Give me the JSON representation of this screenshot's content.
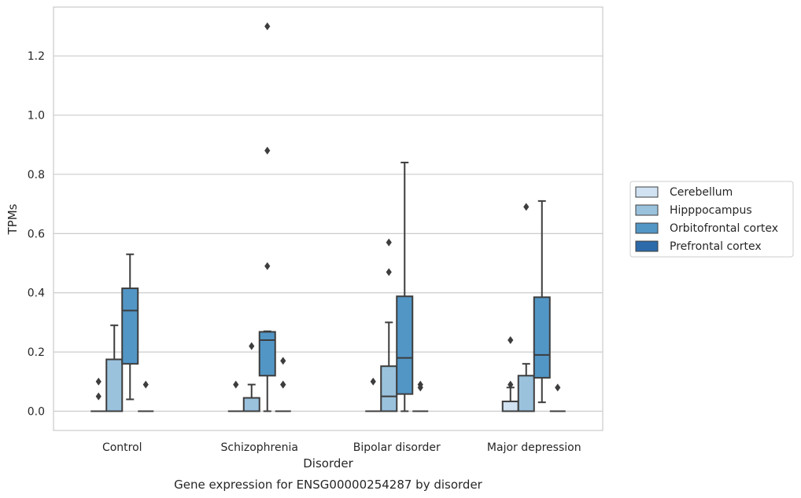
{
  "chart_data": {
    "type": "box",
    "xlabel": "Disorder",
    "ylabel": "TPMs",
    "caption": "Gene expression for ENSG00000254287 by disorder",
    "categories": [
      "Control",
      "Schizophrenia",
      "Bipolar disorder",
      "Major depression"
    ],
    "ylim": [
      -0.065,
      1.365
    ],
    "yticks": [
      0.0,
      0.2,
      0.4,
      0.6,
      0.8,
      1.0,
      1.2
    ],
    "ytick_labels": [
      "0.0",
      "0.2",
      "0.4",
      "0.6",
      "0.8",
      "1.0",
      "1.2"
    ],
    "grid": true,
    "legend_position": "right",
    "series": [
      {
        "name": "Cerebellum",
        "color": "#d1e2f2",
        "boxes": [
          {
            "whislo": 0,
            "q1": 0,
            "med": 0,
            "q3": 0,
            "whishi": 0,
            "fliers": [
              0.05,
              0.1
            ]
          },
          {
            "whislo": 0,
            "q1": 0,
            "med": 0,
            "q3": 0,
            "whishi": 0,
            "fliers": [
              0.09
            ]
          },
          {
            "whislo": 0,
            "q1": 0,
            "med": 0,
            "q3": 0,
            "whishi": 0,
            "fliers": [
              0.1
            ]
          },
          {
            "whislo": 0,
            "q1": 0,
            "med": 0,
            "q3": 0.033,
            "whishi": 0.08,
            "fliers": [
              0.09,
              0.24
            ]
          }
        ]
      },
      {
        "name": "Hipppocampus",
        "color": "#9ac2dd",
        "boxes": [
          {
            "whislo": 0,
            "q1": 0,
            "med": 0,
            "q3": 0.175,
            "whishi": 0.29,
            "fliers": []
          },
          {
            "whislo": 0,
            "q1": 0,
            "med": 0,
            "q3": 0.045,
            "whishi": 0.09,
            "fliers": [
              0.22
            ]
          },
          {
            "whislo": 0,
            "q1": 0,
            "med": 0.05,
            "q3": 0.152,
            "whishi": 0.3,
            "fliers": [
              0.47,
              0.57
            ]
          },
          {
            "whislo": 0,
            "q1": 0,
            "med": 0,
            "q3": 0.12,
            "whishi": 0.16,
            "fliers": [
              0.69
            ]
          }
        ]
      },
      {
        "name": "Orbitofrontal cortex",
        "color": "#5296c6",
        "boxes": [
          {
            "whislo": 0.04,
            "q1": 0.16,
            "med": 0.34,
            "q3": 0.415,
            "whishi": 0.53,
            "fliers": []
          },
          {
            "whislo": 0,
            "q1": 0.12,
            "med": 0.24,
            "q3": 0.268,
            "whishi": 0.27,
            "fliers": [
              0.49,
              0.88,
              1.3
            ]
          },
          {
            "whislo": 0,
            "q1": 0.058,
            "med": 0.18,
            "q3": 0.388,
            "whishi": 0.84,
            "fliers": []
          },
          {
            "whislo": 0.03,
            "q1": 0.113,
            "med": 0.19,
            "q3": 0.385,
            "whishi": 0.71,
            "fliers": []
          }
        ]
      },
      {
        "name": "Prefrontal cortex",
        "color": "#2c6aaa",
        "boxes": [
          {
            "whislo": 0,
            "q1": 0,
            "med": 0,
            "q3": 0,
            "whishi": 0,
            "fliers": [
              0.09
            ]
          },
          {
            "whislo": 0,
            "q1": 0,
            "med": 0,
            "q3": 0,
            "whishi": 0,
            "fliers": [
              0.09,
              0.09,
              0.17
            ]
          },
          {
            "whislo": 0,
            "q1": 0,
            "med": 0,
            "q3": 0,
            "whishi": 0,
            "fliers": [
              0.08,
              0.09
            ]
          },
          {
            "whislo": 0,
            "q1": 0,
            "med": 0,
            "q3": 0,
            "whishi": 0,
            "fliers": [
              0.08
            ]
          }
        ]
      }
    ]
  }
}
